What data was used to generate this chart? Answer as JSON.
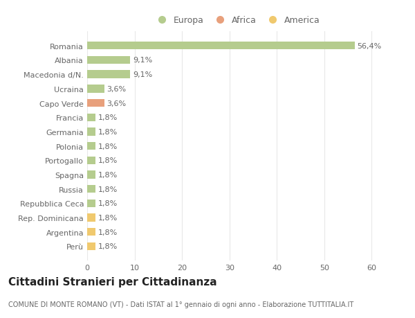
{
  "countries": [
    "Romania",
    "Albania",
    "Macedonia d/N.",
    "Ucraina",
    "Capo Verde",
    "Francia",
    "Germania",
    "Polonia",
    "Portogallo",
    "Spagna",
    "Russia",
    "Repubblica Ceca",
    "Rep. Dominicana",
    "Argentina",
    "Perù"
  ],
  "values": [
    56.4,
    9.1,
    9.1,
    3.6,
    3.6,
    1.8,
    1.8,
    1.8,
    1.8,
    1.8,
    1.8,
    1.8,
    1.8,
    1.8,
    1.8
  ],
  "labels": [
    "56,4%",
    "9,1%",
    "9,1%",
    "3,6%",
    "3,6%",
    "1,8%",
    "1,8%",
    "1,8%",
    "1,8%",
    "1,8%",
    "1,8%",
    "1,8%",
    "1,8%",
    "1,8%",
    "1,8%"
  ],
  "categories": [
    "Europa",
    "Africa",
    "America"
  ],
  "continent": [
    "Europa",
    "Europa",
    "Europa",
    "Europa",
    "Africa",
    "Europa",
    "Europa",
    "Europa",
    "Europa",
    "Europa",
    "Europa",
    "Europa",
    "America",
    "America",
    "America"
  ],
  "colors": {
    "Europa": "#b5cc8e",
    "Africa": "#e8a07c",
    "America": "#f0c96e"
  },
  "title": "Cittadini Stranieri per Cittadinanza",
  "subtitle": "COMUNE DI MONTE ROMANO (VT) - Dati ISTAT al 1° gennaio di ogni anno - Elaborazione TUTTITALIA.IT",
  "xlim": [
    0,
    63
  ],
  "background_color": "#ffffff",
  "grid_color": "#e8e8e8",
  "bar_height": 0.55,
  "label_fontsize": 8,
  "tick_fontsize": 8,
  "title_fontsize": 11,
  "subtitle_fontsize": 7
}
